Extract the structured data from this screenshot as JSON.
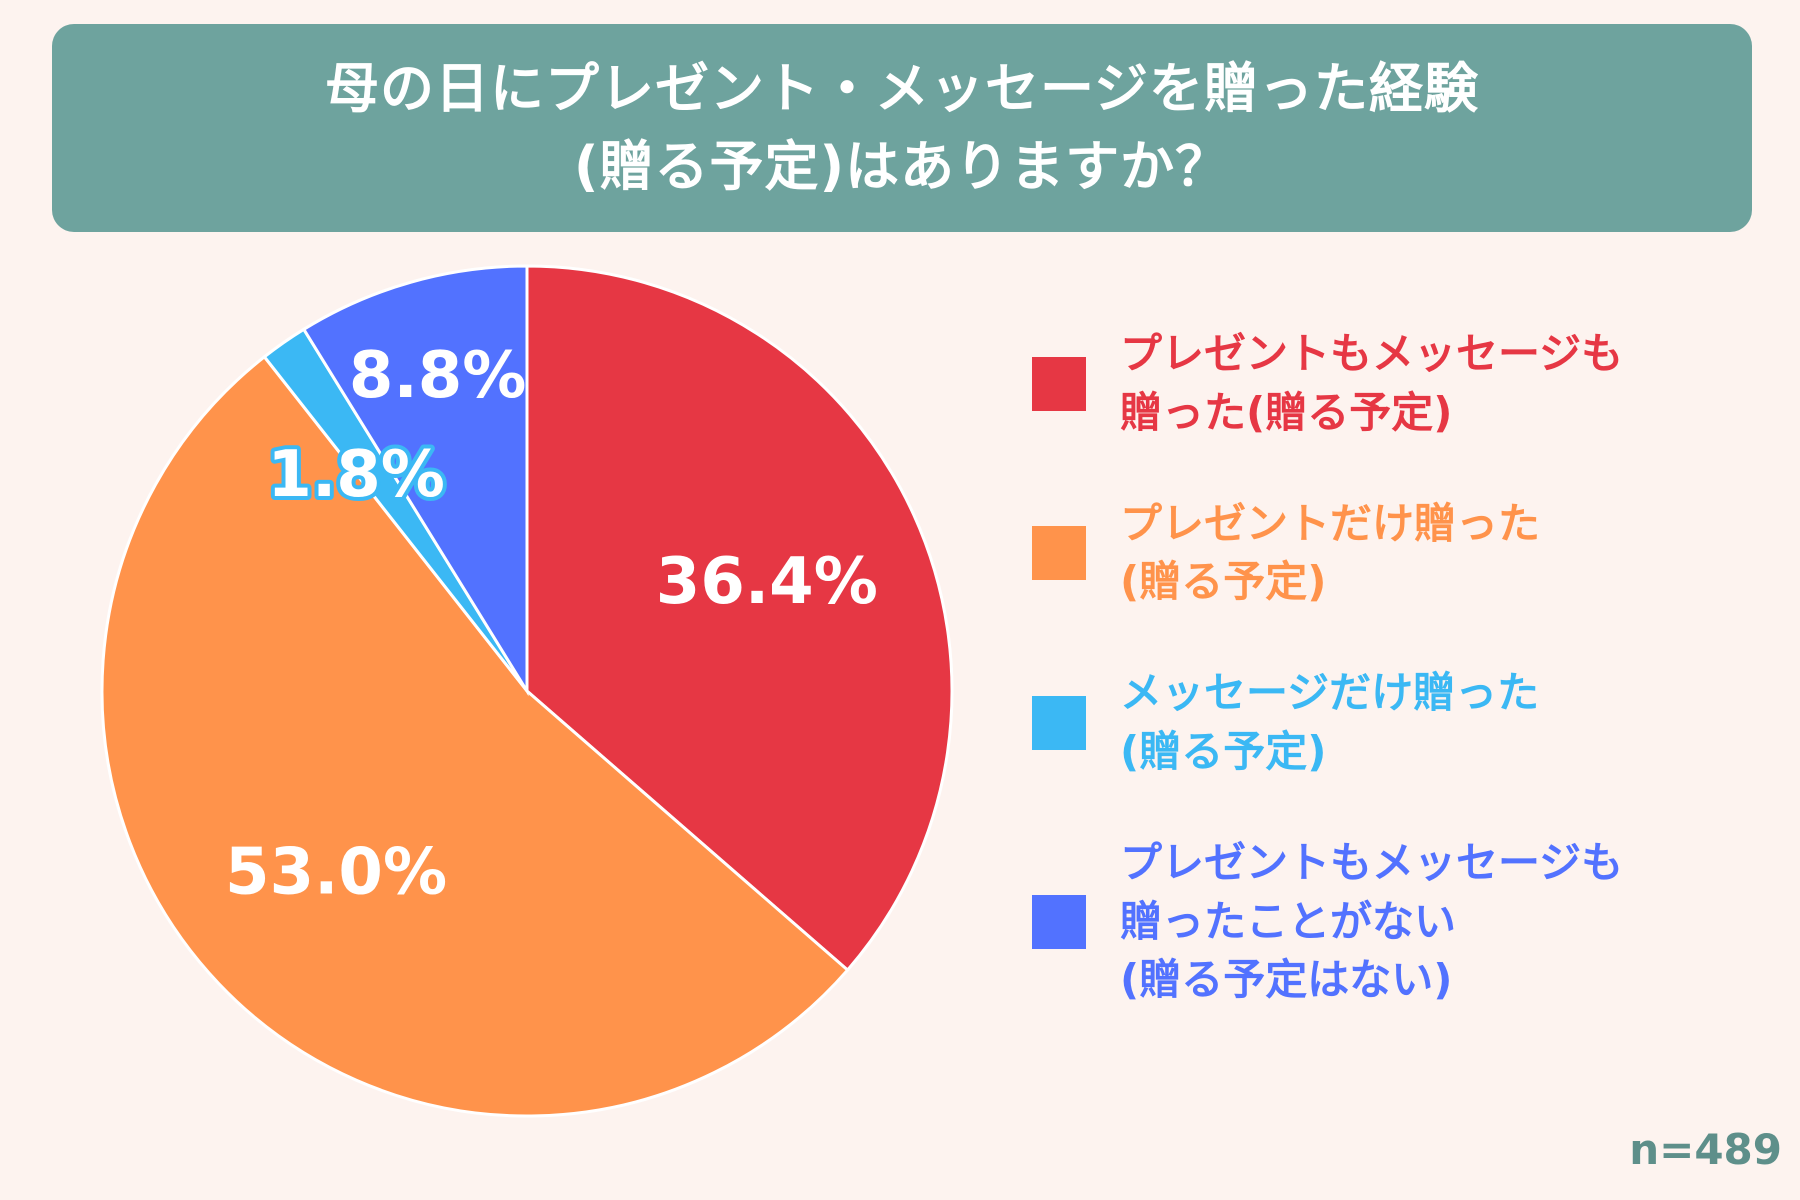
{
  "header": {
    "title_line1": "母の日にプレゼント・メッセージを贈った経験",
    "title_line2": "(贈る予定)はありますか？"
  },
  "chart_data": {
    "type": "pie",
    "title": "母の日にプレゼント・メッセージを贈った経験(贈る予定)はありますか？",
    "start_angle_deg": 0,
    "direction": "clockwise",
    "legend_position": "right",
    "sample_size_label": "n=489",
    "slices": [
      {
        "name": "プレゼントもメッセージも\n贈った(贈る予定)",
        "value": 36.4,
        "label": "36.4%",
        "color": "#e63744"
      },
      {
        "name": "プレゼントだけ贈った\n(贈る予定)",
        "value": 53.0,
        "label": "53.0%",
        "color": "#ff934b"
      },
      {
        "name": "メッセージだけ贈った\n(贈る予定)",
        "value": 1.8,
        "label": "1.8%",
        "color": "#3bb8f4"
      },
      {
        "name": "プレゼントもメッセージも\n贈ったことがない\n(贈る予定はない)",
        "value": 8.8,
        "label": "8.8%",
        "color": "#5272ff"
      }
    ]
  }
}
